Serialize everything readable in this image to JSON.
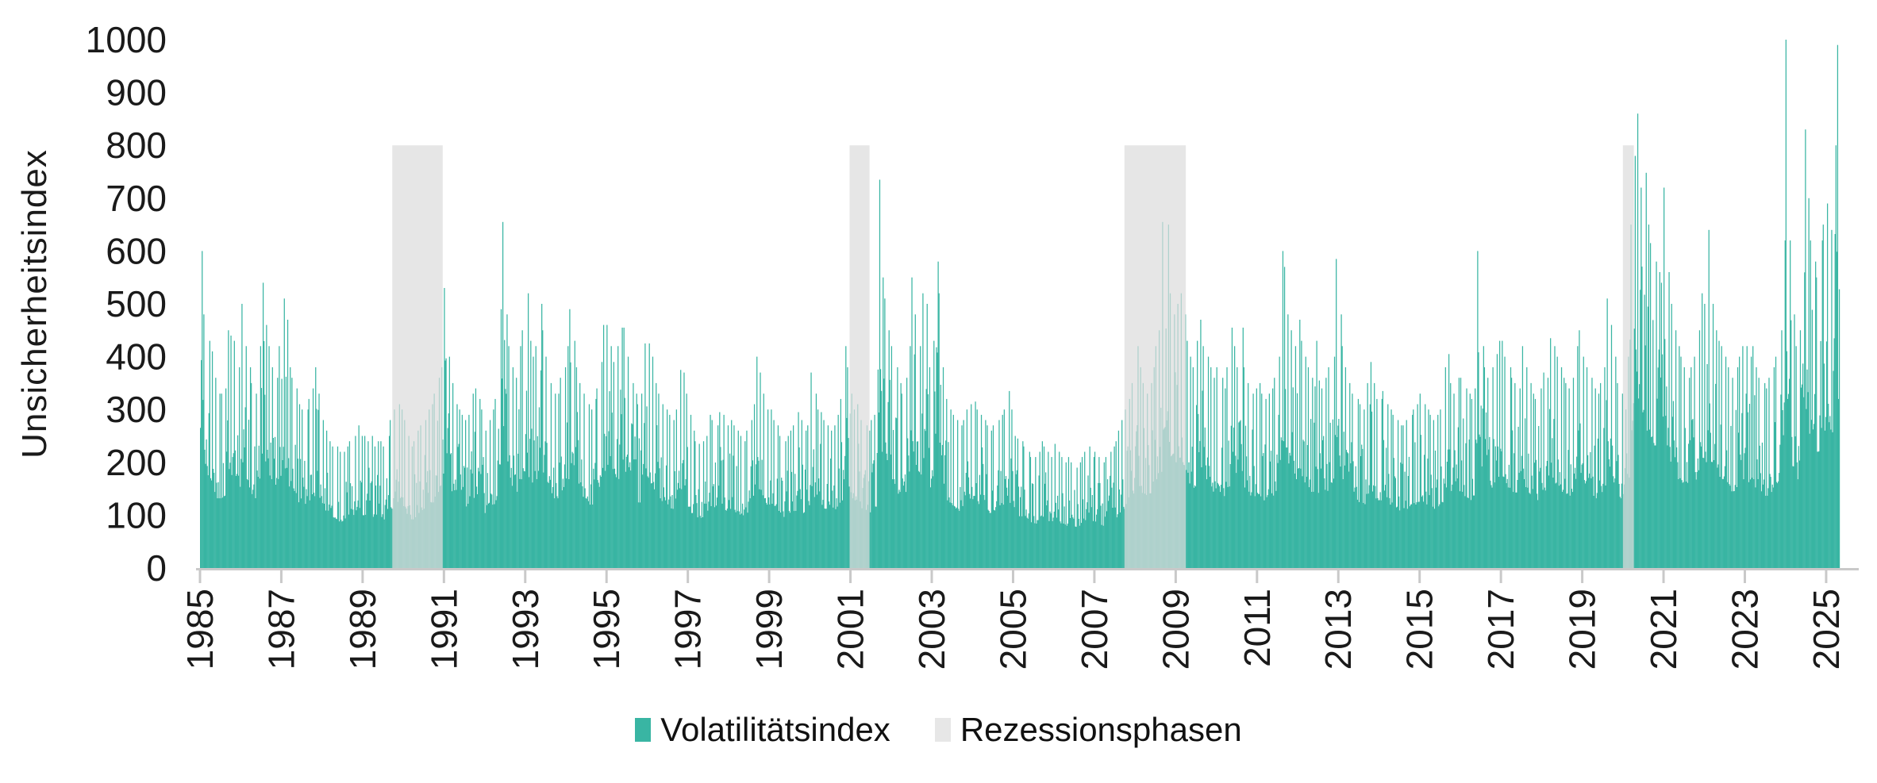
{
  "chart_data": {
    "type": "bar",
    "title": "",
    "ylabel": "Unsicherheitsindex",
    "xlabel": "",
    "ylim": [
      0,
      1000
    ],
    "xlim": [
      1985.0,
      2025.42
    ],
    "grid": false,
    "y_ticks": [
      0,
      100,
      200,
      300,
      400,
      500,
      600,
      700,
      800,
      900,
      1000
    ],
    "x_ticks": [
      1985,
      1987,
      1989,
      1991,
      1993,
      1995,
      1997,
      1999,
      2001,
      2003,
      2005,
      2007,
      2009,
      2011,
      2013,
      2015,
      2017,
      2019,
      2021,
      2023,
      2025
    ],
    "legend": {
      "position": "bottom-center",
      "items": [
        {
          "label": "Volatilitätsindex",
          "color": "#39b5a3"
        },
        {
          "label": "Rezessionsphasen",
          "color": "#e7e7e7"
        }
      ]
    },
    "recession_bands": {
      "name": "Rezessionsphasen",
      "top_value": 800,
      "ranges_year": [
        [
          1989.73,
          1990.97
        ],
        [
          2000.98,
          2001.47
        ],
        [
          2007.74,
          2009.25
        ],
        [
          2020.0,
          2020.27
        ]
      ]
    },
    "series": {
      "name": "Volatilitätsindex",
      "unit": "index points",
      "start_year": 1985,
      "frequency": "monthly-envelope (peak of daily bars per month, estimated from pixels)",
      "monthly_peak_by_year": [
        [
          600,
          480,
          430,
          410,
          360,
          330,
          330,
          340,
          450,
          440,
          430,
          380
        ],
        [
          500,
          420,
          380,
          350,
          330,
          420,
          540,
          460,
          420,
          380,
          360,
          420
        ],
        [
          510,
          470,
          380,
          360,
          340,
          310,
          300,
          300,
          320,
          340,
          380,
          330
        ],
        [
          280,
          260,
          240,
          230,
          230,
          220,
          220,
          230,
          240,
          250,
          270,
          250
        ],
        [
          250,
          240,
          250,
          230,
          240,
          240,
          230,
          250,
          280,
          300,
          310,
          300
        ],
        [
          280,
          250,
          230,
          240,
          260,
          270,
          280,
          300,
          310,
          330,
          360,
          380
        ],
        [
          530,
          400,
          350,
          310,
          300,
          290,
          280,
          290,
          330,
          340,
          320,
          300
        ],
        [
          260,
          280,
          300,
          320,
          490,
          655,
          480,
          420,
          380,
          360,
          420,
          450
        ],
        [
          520,
          430,
          400,
          420,
          500,
          450,
          400,
          350,
          330,
          330,
          360,
          380
        ],
        [
          420,
          490,
          430,
          380,
          350,
          330,
          310,
          300,
          320,
          340,
          390,
          460
        ],
        [
          460,
          420,
          390,
          420,
          455,
          455,
          400,
          350,
          330,
          310,
          330,
          425
        ],
        [
          425,
          400,
          350,
          330,
          310,
          300,
          290,
          280,
          300,
          375,
          370,
          330
        ],
        [
          290,
          260,
          240,
          235,
          240,
          250,
          290,
          280,
          270,
          295,
          290,
          270
        ],
        [
          280,
          270,
          260,
          250,
          240,
          260,
          280,
          310,
          400,
          370,
          330,
          300
        ],
        [
          300,
          280,
          270,
          250,
          240,
          250,
          260,
          270,
          295,
          280,
          260,
          270
        ],
        [
          370,
          330,
          300,
          295,
          280,
          270,
          260,
          270,
          290,
          320,
          420,
          380
        ],
        [
          330,
          300,
          310,
          280,
          270,
          260,
          280,
          290,
          735,
          550,
          510,
          450
        ],
        [
          420,
          380,
          350,
          330,
          360,
          420,
          550,
          480,
          420,
          520,
          500,
          380
        ],
        [
          430,
          580,
          520,
          380,
          320,
          300,
          290,
          280,
          270,
          280,
          300,
          310
        ],
        [
          315,
          300,
          290,
          280,
          270,
          260,
          270,
          280,
          290,
          300,
          335,
          300
        ],
        [
          250,
          245,
          240,
          230,
          220,
          210,
          210,
          220,
          240,
          230,
          220,
          210
        ],
        [
          235,
          220,
          210,
          200,
          210,
          200,
          190,
          200,
          210,
          220,
          230,
          210
        ],
        [
          220,
          210,
          200,
          210,
          220,
          230,
          240,
          260,
          280,
          300,
          320,
          350
        ],
        [
          420,
          380,
          350,
          330,
          350,
          380,
          420,
          450,
          655,
          650,
          520,
          480
        ],
        [
          500,
          520,
          480,
          430,
          400,
          380,
          430,
          470,
          420,
          400,
          380,
          360
        ],
        [
          380,
          360,
          340,
          380,
          455,
          420,
          380,
          455,
          380,
          350,
          330,
          340
        ],
        [
          350,
          330,
          320,
          330,
          340,
          360,
          400,
          600,
          570,
          480,
          450,
          420
        ],
        [
          470,
          430,
          400,
          380,
          360,
          430,
          355,
          340,
          360,
          380,
          400,
          585
        ],
        [
          480,
          420,
          380,
          350,
          330,
          320,
          310,
          300,
          350,
          390,
          350,
          320
        ],
        [
          320,
          335,
          310,
          300,
          290,
          280,
          270,
          270,
          280,
          290,
          300,
          310
        ],
        [
          330,
          310,
          300,
          290,
          280,
          290,
          300,
          380,
          405,
          350,
          330,
          360
        ],
        [
          360,
          340,
          330,
          320,
          340,
          600,
          420,
          380,
          360,
          380,
          405,
          430
        ],
        [
          430,
          400,
          380,
          360,
          350,
          340,
          420,
          380,
          350,
          330,
          320,
          340
        ],
        [
          370,
          360,
          435,
          420,
          400,
          380,
          360,
          350,
          340,
          360,
          420,
          450
        ],
        [
          400,
          380,
          360,
          340,
          330,
          350,
          380,
          510,
          460,
          400,
          350,
          330
        ],
        [
          300,
          400,
          650,
          780,
          860,
          720,
          748,
          650,
          615,
          580,
          560,
          540
        ],
        [
          720,
          560,
          500,
          450,
          420,
          400,
          380,
          360,
          380,
          400,
          450,
          520
        ],
        [
          500,
          640,
          500,
          450,
          430,
          420,
          400,
          380,
          360,
          380,
          400,
          420
        ],
        [
          420,
          400,
          420,
          380,
          360,
          350,
          340,
          360,
          380,
          400,
          450,
          620
        ],
        [
          1000,
          620,
          480,
          420,
          450,
          830,
          700,
          620,
          580,
          550,
          620,
          650
        ],
        [
          690,
          640,
          800,
          990
        ]
      ]
    }
  },
  "colors": {
    "bar": "#39b5a3",
    "recession_overlay": "rgba(220,220,220,0.72)",
    "recession_legend_swatch": "#e7e7e7",
    "axis_line": "#c9c9c9",
    "text": "#1a1a1a",
    "background": "#ffffff"
  },
  "legend_labels": {
    "volatility": "Volatilitätsindex",
    "recession": "Rezessionsphasen"
  }
}
